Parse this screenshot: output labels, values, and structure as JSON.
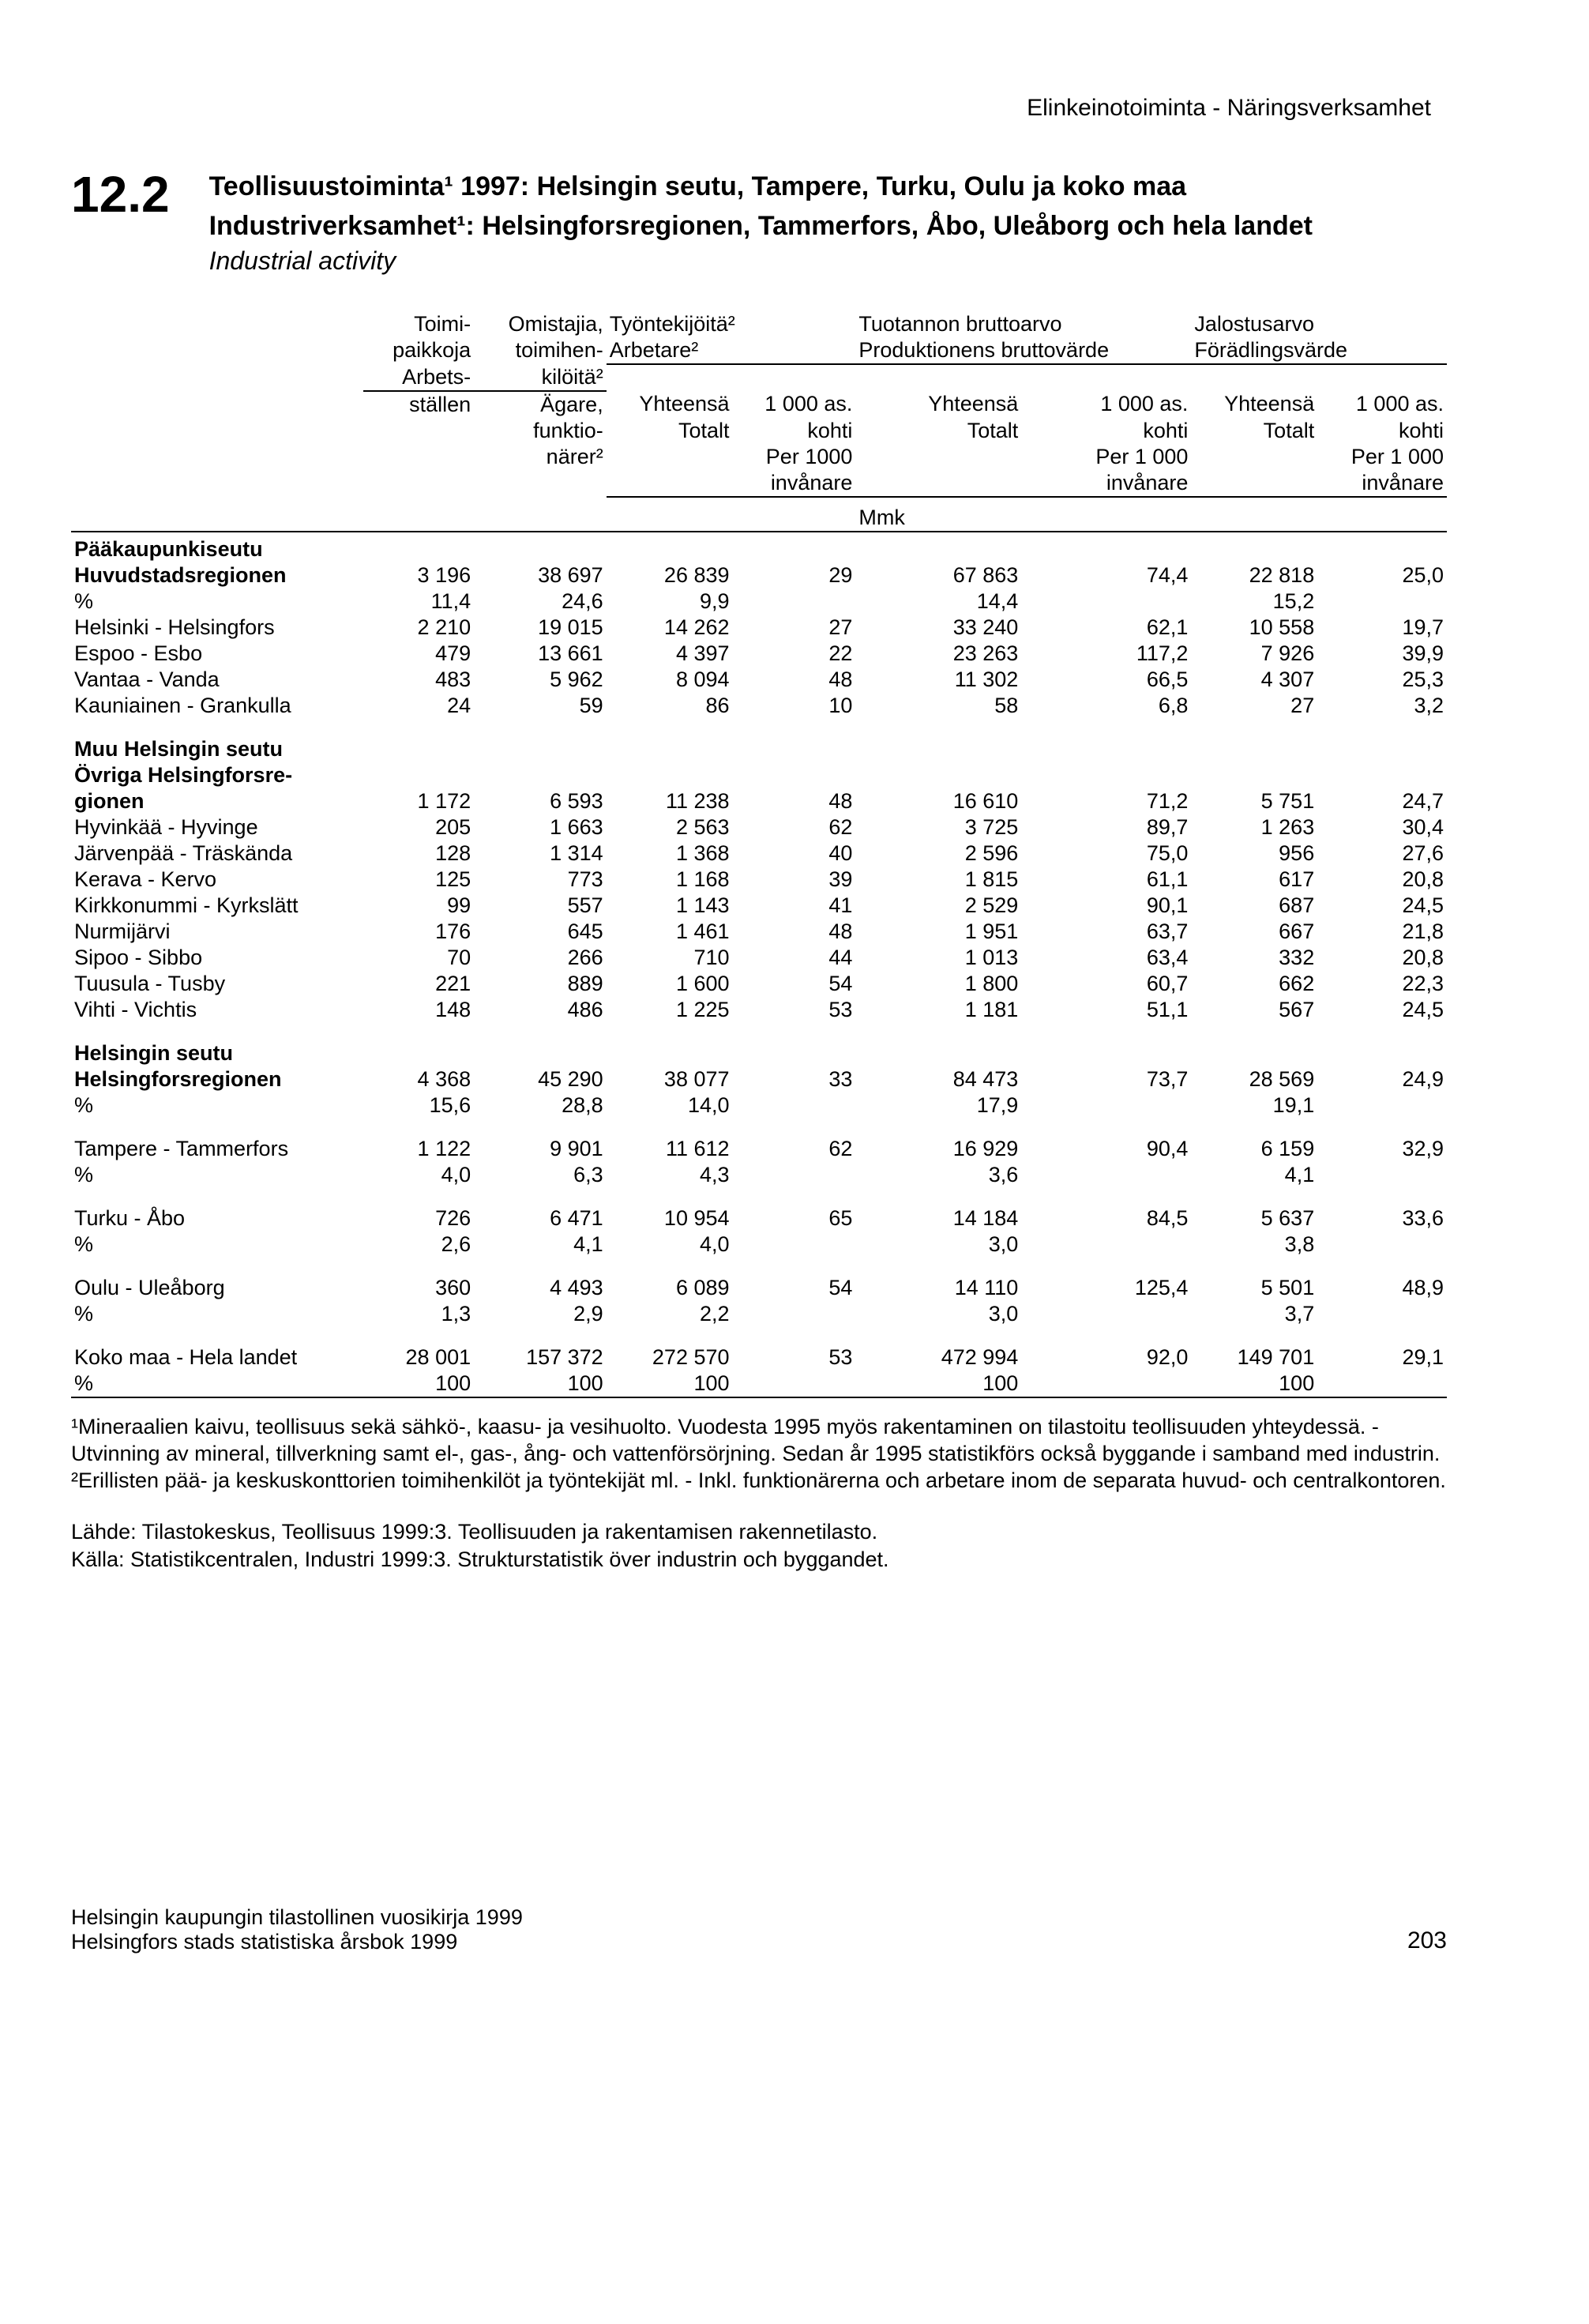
{
  "header_right": "Elinkeinotoiminta - Näringsverksamhet",
  "section_number": "12.2",
  "title_fi": "Teollisuustoiminta¹ 1997: Helsingin seutu, Tampere, Turku, Oulu ja koko maa",
  "title_sv": "Industriverksamhet¹: Helsingforsregionen, Tammerfors, Åbo, Uleåborg och hela landet",
  "title_en": "Industrial activity",
  "col_headers": {
    "c1a": "Toimi-",
    "c1b": "paikkoja",
    "c1c": "Arbets-",
    "c1d": "ställen",
    "c2a": "Omistajia,",
    "c2b": "toimihen-",
    "c2c": "kilöitä²",
    "c2d": "Ägare,",
    "c2e": "funktio-",
    "c2f": "närer²",
    "g3": "Työntekijöitä²",
    "g3b": "Arbetare²",
    "g4": "Tuotannon bruttoarvo",
    "g4b": "Produktionens bruttovärde",
    "g5": "Jalostusarvo",
    "g5b": "Förädlingsvärde",
    "sub_tot": "Yhteensä",
    "sub_tot2": "Totalt",
    "sub_per_a": "1 000 as.",
    "sub_per_b": "kohti",
    "sub_per_c": "Per 1000",
    "sub_per_c2": "Per 1 000",
    "sub_per_d": "invånare",
    "unit": "Mmk"
  },
  "rows": [
    {
      "type": "section",
      "label": "Pääkaupunkiseutu"
    },
    {
      "type": "bold",
      "label": "Huvudstadsregionen",
      "c": [
        "3 196",
        "38 697",
        "26 839",
        "29",
        "67 863",
        "74,4",
        "22 818",
        "25,0"
      ]
    },
    {
      "type": "data",
      "label": "%",
      "c": [
        "11,4",
        "24,6",
        "9,9",
        "",
        "14,4",
        "",
        "15,2",
        ""
      ]
    },
    {
      "type": "data",
      "label": "Helsinki - Helsingfors",
      "c": [
        "2 210",
        "19 015",
        "14 262",
        "27",
        "33 240",
        "62,1",
        "10 558",
        "19,7"
      ]
    },
    {
      "type": "data",
      "label": "Espoo - Esbo",
      "c": [
        "479",
        "13 661",
        "4 397",
        "22",
        "23 263",
        "117,2",
        "7 926",
        "39,9"
      ]
    },
    {
      "type": "data",
      "label": "Vantaa - Vanda",
      "c": [
        "483",
        "5 962",
        "8 094",
        "48",
        "11 302",
        "66,5",
        "4 307",
        "25,3"
      ]
    },
    {
      "type": "data",
      "label": "Kauniainen - Grankulla",
      "c": [
        "24",
        "59",
        "86",
        "10",
        "58",
        "6,8",
        "27",
        "3,2"
      ]
    },
    {
      "type": "spacer"
    },
    {
      "type": "section",
      "label": "Muu Helsingin seutu"
    },
    {
      "type": "section",
      "label": "Övriga Helsingforsre-"
    },
    {
      "type": "bold",
      "label": "gionen",
      "c": [
        "1 172",
        "6 593",
        "11 238",
        "48",
        "16 610",
        "71,2",
        "5 751",
        "24,7"
      ]
    },
    {
      "type": "data",
      "label": "Hyvinkää - Hyvinge",
      "c": [
        "205",
        "1 663",
        "2 563",
        "62",
        "3 725",
        "89,7",
        "1 263",
        "30,4"
      ]
    },
    {
      "type": "data",
      "label": "Järvenpää - Träskända",
      "c": [
        "128",
        "1 314",
        "1 368",
        "40",
        "2 596",
        "75,0",
        "956",
        "27,6"
      ]
    },
    {
      "type": "data",
      "label": "Kerava - Kervo",
      "c": [
        "125",
        "773",
        "1 168",
        "39",
        "1 815",
        "61,1",
        "617",
        "20,8"
      ]
    },
    {
      "type": "data",
      "label": "Kirkkonummi - Kyrkslätt",
      "c": [
        "99",
        "557",
        "1 143",
        "41",
        "2 529",
        "90,1",
        "687",
        "24,5"
      ]
    },
    {
      "type": "data",
      "label": "Nurmijärvi",
      "c": [
        "176",
        "645",
        "1 461",
        "48",
        "1 951",
        "63,7",
        "667",
        "21,8"
      ]
    },
    {
      "type": "data",
      "label": "Sipoo - Sibbo",
      "c": [
        "70",
        "266",
        "710",
        "44",
        "1 013",
        "63,4",
        "332",
        "20,8"
      ]
    },
    {
      "type": "data",
      "label": "Tuusula - Tusby",
      "c": [
        "221",
        "889",
        "1 600",
        "54",
        "1 800",
        "60,7",
        "662",
        "22,3"
      ]
    },
    {
      "type": "data",
      "label": "Vihti - Vichtis",
      "c": [
        "148",
        "486",
        "1 225",
        "53",
        "1 181",
        "51,1",
        "567",
        "24,5"
      ]
    },
    {
      "type": "spacer"
    },
    {
      "type": "section",
      "label": "Helsingin seutu"
    },
    {
      "type": "bold",
      "label": "Helsingforsregionen",
      "c": [
        "4 368",
        "45 290",
        "38 077",
        "33",
        "84 473",
        "73,7",
        "28 569",
        "24,9"
      ]
    },
    {
      "type": "data",
      "label": "%",
      "c": [
        "15,6",
        "28,8",
        "14,0",
        "",
        "17,9",
        "",
        "19,1",
        ""
      ]
    },
    {
      "type": "spacer"
    },
    {
      "type": "data",
      "label": "Tampere - Tammerfors",
      "c": [
        "1 122",
        "9 901",
        "11 612",
        "62",
        "16 929",
        "90,4",
        "6 159",
        "32,9"
      ]
    },
    {
      "type": "data",
      "label": "%",
      "c": [
        "4,0",
        "6,3",
        "4,3",
        "",
        "3,6",
        "",
        "4,1",
        ""
      ]
    },
    {
      "type": "spacer"
    },
    {
      "type": "data",
      "label": "Turku - Åbo",
      "c": [
        "726",
        "6 471",
        "10 954",
        "65",
        "14 184",
        "84,5",
        "5 637",
        "33,6"
      ]
    },
    {
      "type": "data",
      "label": "%",
      "c": [
        "2,6",
        "4,1",
        "4,0",
        "",
        "3,0",
        "",
        "3,8",
        ""
      ]
    },
    {
      "type": "spacer"
    },
    {
      "type": "data",
      "label": "Oulu - Uleåborg",
      "c": [
        "360",
        "4 493",
        "6 089",
        "54",
        "14 110",
        "125,4",
        "5 501",
        "48,9"
      ]
    },
    {
      "type": "data",
      "label": "%",
      "c": [
        "1,3",
        "2,9",
        "2,2",
        "",
        "3,0",
        "",
        "3,7",
        ""
      ]
    },
    {
      "type": "spacer"
    },
    {
      "type": "data",
      "label": "Koko maa - Hela landet",
      "c": [
        "28 001",
        "157 372",
        "272 570",
        "53",
        "472 994",
        "92,0",
        "149 701",
        "29,1"
      ]
    },
    {
      "type": "data",
      "label": "%",
      "c": [
        "100",
        "100",
        "100",
        "",
        "100",
        "",
        "100",
        ""
      ]
    }
  ],
  "footnote1": "¹Mineraalien kaivu, teollisuus sekä sähkö-, kaasu- ja vesihuolto. Vuodesta 1995 myös rakentaminen on tilastoitu teollisuuden yhteydessä. - Utvinning av mineral, tillverkning samt el-, gas-, ång- och vattenförsörjning. Sedan år 1995 statistikförs också byggande i samband med industrin.",
  "footnote2": "²Erillisten pää- ja keskuskonttorien toimihenkilöt ja työntekijät ml. - Inkl. funktionärerna och arbetare inom de separata huvud- och centralkontoren.",
  "source1": "Lähde: Tilastokeskus, Teollisuus 1999:3. Teollisuuden ja rakentamisen rakennetilasto.",
  "source2": "Källa: Statistikcentralen, Industri 1999:3. Strukturstatistik över industrin och byggandet.",
  "footer_left1": "Helsingin kaupungin tilastollinen vuosikirja 1999",
  "footer_left2": "Helsingfors stads statistiska årsbok 1999",
  "page_number": "203",
  "colors": {
    "text": "#000000",
    "bg": "#ffffff",
    "rule": "#000000"
  }
}
